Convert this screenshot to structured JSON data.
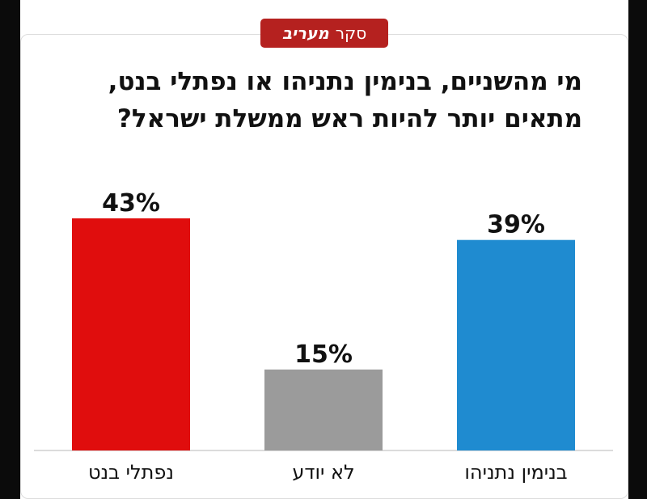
{
  "badge": {
    "prefix": "סקר",
    "brand": "מעריב"
  },
  "title_line1": "מי מהשניים, בנימין נתניהו או נפתלי בנט,",
  "title_line2": "מתאים יותר להיות ראש ממשלת ישראל?",
  "chart_data": {
    "type": "bar",
    "categories": [
      "נפתלי בנט",
      "לא יודע",
      "בנימין נתניהו"
    ],
    "values": [
      43,
      15,
      39
    ],
    "value_labels": [
      "43%",
      "15%",
      "39%"
    ],
    "colors": [
      "#e00d0d",
      "#9b9b9b",
      "#1f8bd0"
    ],
    "title": "מי מהשניים, בנימין נתניהו או נפתלי בנט, מתאים יותר להיות ראש ממשלת ישראל?",
    "xlabel": "",
    "ylabel": "",
    "ylim": [
      0,
      43
    ],
    "grid": false,
    "legend": "none"
  }
}
